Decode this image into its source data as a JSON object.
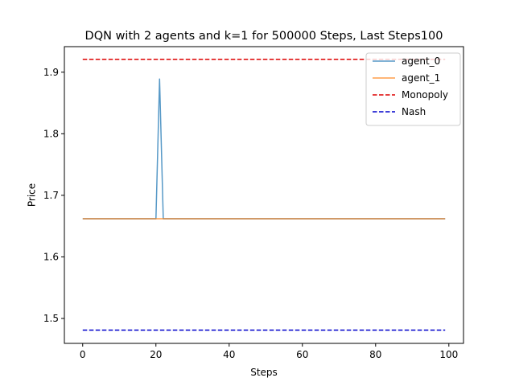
{
  "chart_data": {
    "type": "line",
    "title": "DQN with 2 agents and k=1 for 500000 Steps, Last Steps100",
    "xlabel": "Steps",
    "ylabel": "Price",
    "xlim": [
      -5,
      104
    ],
    "ylim": [
      1.4595,
      1.9415
    ],
    "xticks": [
      0,
      20,
      40,
      60,
      80,
      100
    ],
    "yticks": [
      1.5,
      1.6,
      1.7,
      1.8,
      1.9
    ],
    "x_tick_labels": [
      "0",
      "20",
      "40",
      "60",
      "80",
      "100"
    ],
    "y_tick_labels": [
      "1.5",
      "1.6",
      "1.7",
      "1.8",
      "1.9"
    ],
    "grid": false,
    "legend_position": "top-right",
    "series": [
      {
        "name": "agent_0",
        "color": "#1f77b4",
        "alpha": 0.75,
        "style": "solid",
        "x": [
          0,
          20,
          21,
          22,
          99
        ],
        "y": [
          1.662,
          1.662,
          1.889,
          1.662,
          1.662
        ]
      },
      {
        "name": "agent_1",
        "color": "#ff7f0e",
        "alpha": 0.75,
        "style": "solid",
        "x": [
          0,
          99
        ],
        "y": [
          1.662,
          1.662
        ]
      },
      {
        "name": "Monopoly",
        "color": "#dd0000",
        "alpha": 1,
        "style": "dashed",
        "x": [
          0,
          99
        ],
        "y": [
          1.921,
          1.921
        ]
      },
      {
        "name": "Nash",
        "color": "#0000cc",
        "alpha": 1,
        "style": "dashed",
        "x": [
          0,
          99
        ],
        "y": [
          1.481,
          1.481
        ]
      }
    ]
  }
}
